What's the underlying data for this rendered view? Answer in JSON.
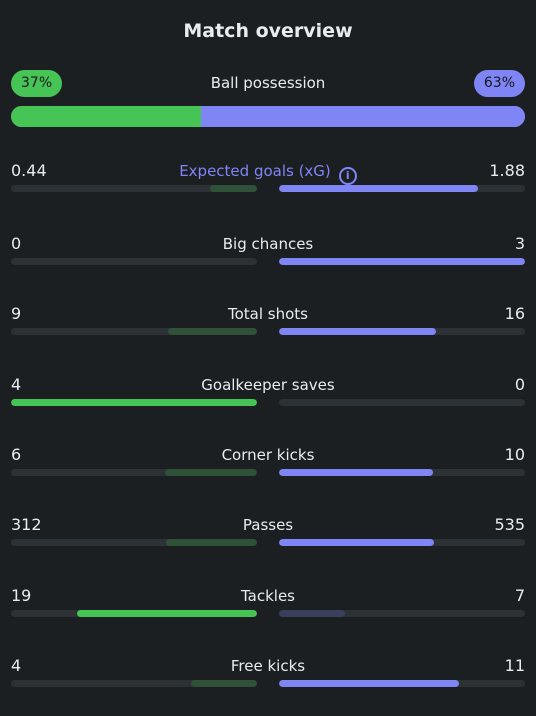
{
  "title": "Match overview",
  "possession": {
    "label": "Ball possession",
    "home": "37%",
    "away": "63%",
    "home_fraction": 0.37
  },
  "colors": {
    "home": "#46c456",
    "away": "#7f85f5",
    "home_dim": "#2f5137",
    "away_dim": "#3a3f5c"
  },
  "stats": [
    {
      "label": "Expected goals (xG)",
      "home": "0.44",
      "away": "1.88",
      "home_fill": 0.19,
      "away_fill": 0.81,
      "home_lead": false,
      "away_lead": true,
      "info_icon": true
    },
    {
      "label": "Big chances",
      "home": "0",
      "away": "3",
      "home_fill": 0.0,
      "away_fill": 1.0,
      "home_lead": false,
      "away_lead": true
    },
    {
      "label": "Total shots",
      "home": "9",
      "away": "16",
      "home_fill": 0.36,
      "away_fill": 0.64,
      "home_lead": false,
      "away_lead": true
    },
    {
      "label": "Goalkeeper saves",
      "home": "4",
      "away": "0",
      "home_fill": 1.0,
      "away_fill": 0.0,
      "home_lead": true,
      "away_lead": false
    },
    {
      "label": "Corner kicks",
      "home": "6",
      "away": "10",
      "home_fill": 0.375,
      "away_fill": 0.625,
      "home_lead": false,
      "away_lead": true
    },
    {
      "label": "Passes",
      "home": "312",
      "away": "535",
      "home_fill": 0.37,
      "away_fill": 0.63,
      "home_lead": false,
      "away_lead": true
    },
    {
      "label": "Tackles",
      "home": "19",
      "away": "7",
      "home_fill": 0.73,
      "away_fill": 0.27,
      "home_lead": true,
      "away_lead": false
    },
    {
      "label": "Free kicks",
      "home": "4",
      "away": "11",
      "home_fill": 0.27,
      "away_fill": 0.73,
      "home_lead": false,
      "away_lead": true
    }
  ]
}
